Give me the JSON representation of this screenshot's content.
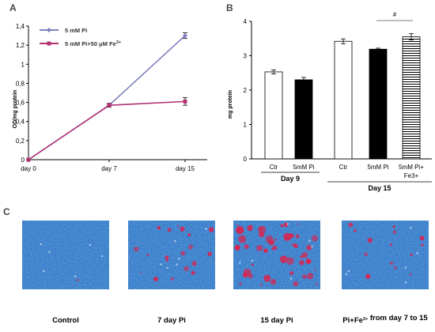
{
  "panels": {
    "a": "A",
    "b": "B",
    "c": "C"
  },
  "chart_data": [
    {
      "type": "line",
      "ylabel": "OD/mg protein",
      "x": [
        "day 0",
        "day 7",
        "day 15"
      ],
      "ylim": [
        0,
        1.4
      ],
      "yticks": [
        "0",
        "0,2",
        "0,4",
        "0,6",
        "0,8",
        "1",
        "1,2",
        "1,4"
      ],
      "grid": false,
      "legend_position": "top-left",
      "series": [
        {
          "name": "5 mM Pi",
          "values": [
            0,
            0.57,
            1.3
          ],
          "errors": [
            0,
            0.02,
            0.03
          ],
          "color": "#7f7fc0",
          "marker": "diamond"
        },
        {
          "name": "5 mM Pi+50 μM Fe3+",
          "values": [
            0,
            0.57,
            0.61
          ],
          "errors": [
            0,
            0.02,
            0.04
          ],
          "color": "#b03070",
          "marker": "square"
        }
      ]
    },
    {
      "type": "bar",
      "ylabel": "mg protein",
      "ylim": [
        0,
        4
      ],
      "yticks": [
        "0",
        "1",
        "2",
        "3",
        "4"
      ],
      "categories": [
        "Ctr",
        "5mM Pi",
        "Ctr",
        "5mM Pi",
        "5mM Pi+ Fe3+"
      ],
      "values": [
        2.53,
        2.3,
        3.42,
        3.19,
        3.55
      ],
      "errors": [
        0.06,
        0.07,
        0.07,
        0.03,
        0.09
      ],
      "fills": [
        "white",
        "black",
        "white",
        "black",
        "striped"
      ],
      "groups": [
        {
          "label": "Day 9",
          "members": [
            0,
            1
          ]
        },
        {
          "label": "Day 15",
          "members": [
            2,
            3,
            4
          ]
        }
      ],
      "annotation": "#"
    }
  ],
  "photos": [
    {
      "caption": "Control",
      "level": 0.02
    },
    {
      "caption": "7 day Pi",
      "level": 0.35
    },
    {
      "caption": "15 day Pi",
      "level": 0.9
    },
    {
      "caption": "Pi+Fe3+ from day 7 to 15",
      "level": 0.25
    }
  ]
}
